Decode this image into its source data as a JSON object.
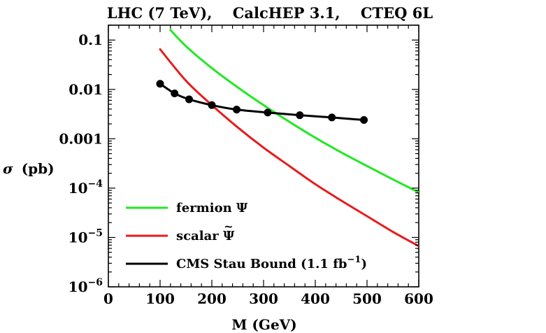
{
  "chart_data": {
    "type": "line",
    "title": "LHC (7 TeV),    CalcHEP 3.1,    CTEQ 6L",
    "xlabel": "M (GeV)",
    "ylabel_symbol": "σ",
    "ylabel_unit": "(pb)",
    "xscale": "linear",
    "yscale": "log",
    "xlim": [
      0,
      600
    ],
    "ylim": [
      1e-06,
      0.2
    ],
    "grid": false,
    "legend_position": "bottom-left",
    "xticks": [
      {
        "value": 0,
        "label": "0"
      },
      {
        "value": 100,
        "label": "100"
      },
      {
        "value": 200,
        "label": "200"
      },
      {
        "value": 300,
        "label": "300"
      },
      {
        "value": 400,
        "label": "400"
      },
      {
        "value": 500,
        "label": "500"
      },
      {
        "value": 600,
        "label": "600"
      }
    ],
    "yticks": [
      {
        "value": 0.1,
        "label": "0.1"
      },
      {
        "value": 0.01,
        "label": "0.01"
      },
      {
        "value": 0.001,
        "label": "0.001"
      },
      {
        "value": 0.0001,
        "base": "10",
        "exp": "−4"
      },
      {
        "value": 1e-05,
        "base": "10",
        "exp": "−5"
      },
      {
        "value": 1e-06,
        "base": "10",
        "exp": "−6"
      }
    ],
    "series": [
      {
        "name": "fermion Ψ",
        "color": "#22e822",
        "x": [
          120,
          150,
          200,
          250,
          300,
          350,
          400,
          450,
          500,
          550,
          600
        ],
        "y": [
          0.16,
          0.075,
          0.027,
          0.011,
          0.0048,
          0.0022,
          0.00105,
          0.00053,
          0.00028,
          0.00015,
          8.2e-05
        ]
      },
      {
        "name_main": "scalar ",
        "name_symbol": "Ψ",
        "name_accent": "~",
        "color": "#e81c1c",
        "x": [
          100,
          150,
          200,
          250,
          300,
          350,
          400,
          450,
          500,
          550,
          600
        ],
        "y": [
          0.065,
          0.015,
          0.0048,
          0.0017,
          0.00066,
          0.00028,
          0.00012,
          5.6e-05,
          2.7e-05,
          1.3e-05,
          6.7e-06
        ]
      },
      {
        "name_main": "CMS Stau Bound (1.1 fb",
        "name_exp": "−1",
        "name_close": ")",
        "color": "#000000",
        "markers": true,
        "x": [
          100,
          128,
          156,
          200,
          248,
          308,
          370,
          432,
          494
        ],
        "y": [
          0.013,
          0.0083,
          0.0063,
          0.0048,
          0.0039,
          0.0034,
          0.003,
          0.0027,
          0.0024
        ]
      }
    ]
  }
}
